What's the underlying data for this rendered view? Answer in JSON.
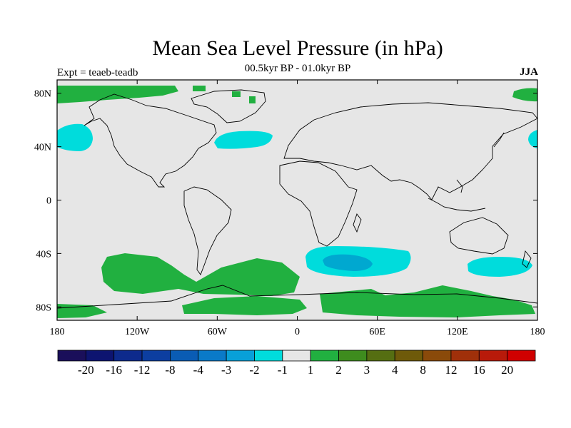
{
  "title": "Mean Sea Level Pressure (in hPa)",
  "subtitle": "00.5kyr BP - 01.0kyr BP",
  "left_label": "Expt = teaeb-teadb",
  "right_label": "JJA",
  "colors": {
    "land_fill": "#e6e6e6",
    "positive_1_2": "#21b040",
    "negative_1_2": "#00dcdc",
    "negative_2_3": "#00a8d0"
  },
  "axes": {
    "x_ticks": [
      {
        "value": -180,
        "label": "180"
      },
      {
        "value": -120,
        "label": "120W"
      },
      {
        "value": -60,
        "label": "60W"
      },
      {
        "value": 0,
        "label": "0"
      },
      {
        "value": 60,
        "label": "60E"
      },
      {
        "value": 120,
        "label": "120E"
      },
      {
        "value": 180,
        "label": "180"
      }
    ],
    "y_ticks": [
      {
        "value": 80,
        "label": "80N"
      },
      {
        "value": 40,
        "label": "40N"
      },
      {
        "value": 0,
        "label": "0"
      },
      {
        "value": -40,
        "label": "40S"
      },
      {
        "value": -80,
        "label": "80S"
      }
    ],
    "lon_range": [
      -180,
      180
    ],
    "lat_range": [
      -90,
      90
    ]
  },
  "colorbar": {
    "colors": [
      "#1a0f5a",
      "#0d1470",
      "#0d2a8c",
      "#0c3ea0",
      "#0a5cb4",
      "#0a7ac8",
      "#08a0d8",
      "#00dcdc",
      "#e6e6e6",
      "#21b040",
      "#3e8c1e",
      "#556e12",
      "#6e5a0a",
      "#8a4a0a",
      "#a0300a",
      "#b81a0a",
      "#d00000"
    ],
    "labels": [
      "-20",
      "-16",
      "-12",
      "-8",
      "-4",
      "-3",
      "-2",
      "-1",
      "1",
      "2",
      "3",
      "4",
      "8",
      "12",
      "16",
      "20"
    ]
  }
}
